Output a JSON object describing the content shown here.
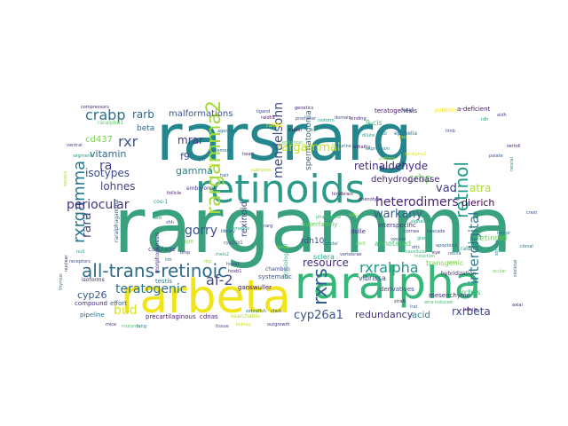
{
  "wordcloud": {
    "words": [
      {
        "text": "rargamma",
        "color": "#3aa17e"
      },
      {
        "text": "rarsrarg",
        "color": "#24878e"
      },
      {
        "text": "retinoids",
        "color": "#2b9a8a"
      },
      {
        "text": "rarbeta",
        "color": "#f2e41b"
      },
      {
        "text": "raralpha",
        "color": "#35b779"
      },
      {
        "text": "all-trans-retinoic",
        "color": "#2f6c8e"
      },
      {
        "text": "rargamma2",
        "color": "#a2da37"
      },
      {
        "text": "rxrgamma",
        "color": "#2a788e"
      },
      {
        "text": "rxrs",
        "color": "#355f8d"
      },
      {
        "text": "retinol",
        "color": "#1f9a8a"
      },
      {
        "text": "crabp",
        "color": "#2c728e"
      },
      {
        "text": "rxr",
        "color": "#3b528b"
      },
      {
        "text": "vitamin",
        "color": "#31688e"
      },
      {
        "text": "isotypes",
        "color": "#3e4a89"
      },
      {
        "text": "lohnes",
        "color": "#414487"
      },
      {
        "text": "periocular",
        "color": "#46327e"
      },
      {
        "text": "rara",
        "color": "#3e4c8a"
      },
      {
        "text": "teratogenic",
        "color": "#2c718e"
      },
      {
        "text": "bud",
        "color": "#d8e219"
      },
      {
        "text": "cyp26",
        "color": "#365c8d"
      },
      {
        "text": "af-2",
        "color": "#404688"
      },
      {
        "text": "gorry",
        "color": "#3b518b"
      },
      {
        "text": "rxralpha",
        "color": "#1f988b"
      },
      {
        "text": "cyp26a1",
        "color": "#39568c"
      },
      {
        "text": "redundancy",
        "color": "#46327e"
      },
      {
        "text": "rxrbeta",
        "color": "#3f4788"
      },
      {
        "text": "resource",
        "color": "#472d7b"
      },
      {
        "text": "heterodimers",
        "color": "#482475"
      },
      {
        "text": "retinaldehyde",
        "color": "#472a7a"
      },
      {
        "text": "mendelsohn",
        "color": "#3d4d8a"
      },
      {
        "text": "rargammal",
        "color": "#c0df25"
      },
      {
        "text": "warkany",
        "color": "#33638d"
      },
      {
        "text": "crbp",
        "color": "#6ccd5a"
      },
      {
        "text": "atra",
        "color": "#addc30"
      },
      {
        "text": "vad",
        "color": "#433e85"
      },
      {
        "text": "dehydrogenase",
        "color": "#482878"
      },
      {
        "text": "interdigital",
        "color": "#2a788e"
      },
      {
        "text": "mrar",
        "color": "#443a83"
      },
      {
        "text": "rarb",
        "color": "#32648e"
      },
      {
        "text": "malformations",
        "color": "#39568c"
      },
      {
        "text": "beta",
        "color": "#31688e"
      },
      {
        "text": "gamma",
        "color": "#26828e"
      },
      {
        "text": "ra",
        "color": "#414487"
      },
      {
        "text": "f9",
        "color": "#3b528b"
      },
      {
        "text": "cd437",
        "color": "#7ad151"
      },
      {
        "text": "rexinoid",
        "color": "#3f4889"
      },
      {
        "text": "rdh10",
        "color": "#3e4989"
      },
      {
        "text": "spermatogonia",
        "color": "#2e6e8e"
      },
      {
        "text": "retinoid",
        "color": "#6ccd5a"
      },
      {
        "text": "acid",
        "color": "#287d8e"
      },
      {
        "text": "dierich",
        "color": "#440154"
      },
      {
        "text": "teratogenesis",
        "color": "#48186a"
      },
      {
        "text": "raralphagamma",
        "color": "#34618d"
      },
      {
        "text": "morphogenesis",
        "color": "#46307e"
      },
      {
        "text": "fetal",
        "color": "#3a538b"
      },
      {
        "text": "publicity",
        "color": "#f1e51d"
      },
      {
        "text": "a-deficient",
        "color": "#481b6d"
      },
      {
        "text": "transgenic",
        "color": "#7ad151"
      },
      {
        "text": "annotated",
        "color": "#4ac16d"
      },
      {
        "text": "derivatives",
        "color": "#3e4c8a"
      },
      {
        "text": "mesenchyme",
        "color": "#472c7a"
      },
      {
        "text": "hybridization",
        "color": "#482374"
      },
      {
        "text": "arches",
        "color": "#35b779"
      },
      {
        "text": "sclera",
        "color": "#22a884"
      },
      {
        "text": "vibrissa",
        "color": "#3b528b"
      },
      {
        "text": "embryonal",
        "color": "#433e85"
      },
      {
        "text": "ganswuller",
        "color": "#471063"
      },
      {
        "text": "cartilage",
        "color": "#3e4a89"
      },
      {
        "text": "chambon",
        "color": "#3f4889"
      },
      {
        "text": "pipeline",
        "color": "#2d708e"
      },
      {
        "text": "compound",
        "color": "#472d7b"
      },
      {
        "text": "precartilaginous",
        "color": "#481a6c"
      },
      {
        "text": "cdnas",
        "color": "#481f70"
      },
      {
        "text": "searchable",
        "color": "#b5de2b"
      },
      {
        "text": "isoforms",
        "color": "#482071"
      },
      {
        "text": "testis",
        "color": "#287c8e"
      },
      {
        "text": "systematic",
        "color": "#3a548c"
      },
      {
        "text": "interspecific",
        "color": "#46337f"
      },
      {
        "text": "superfamily",
        "color": "#5ec962"
      },
      {
        "text": "dolle",
        "color": "#472f7d"
      },
      {
        "text": "effort",
        "color": "#365d8d"
      },
      {
        "text": "raldh2",
        "color": "#fde725"
      },
      {
        "text": "raldh1",
        "color": "#471365"
      },
      {
        "text": "situ",
        "color": "#84d44b"
      },
      {
        "text": "lihb",
        "color": "#26828e"
      },
      {
        "text": "raldh3",
        "color": "#21918c"
      },
      {
        "text": "agenesis",
        "color": "#2c728e"
      },
      {
        "text": "raralpha1",
        "color": "#5ec962"
      },
      {
        "text": "homeotic",
        "color": "#20a486"
      },
      {
        "text": "library",
        "color": "#38598c"
      },
      {
        "text": "ligand",
        "color": "#3b528b"
      },
      {
        "text": "9-cis",
        "color": "#3dbc74"
      },
      {
        "text": "rarg",
        "color": "#46337e"
      },
      {
        "text": "cos-1",
        "color": "#1e9b8a"
      },
      {
        "text": "epithelia",
        "color": "#2c738e"
      },
      {
        "text": "atra-induced",
        "color": "#3fbc73"
      },
      {
        "text": "physiological",
        "color": "#2ab07f"
      },
      {
        "text": "subtypes",
        "color": "#bddf26"
      },
      {
        "text": "genetics",
        "color": "#482173"
      },
      {
        "text": "larval",
        "color": "#8fd744"
      },
      {
        "text": "fusion",
        "color": "#440154"
      },
      {
        "text": "raralpha2",
        "color": "#e5e419"
      },
      {
        "text": "dilute",
        "color": "#1fa088"
      },
      {
        "text": "hox",
        "color": "#cae11f"
      },
      {
        "text": "intracellular",
        "color": "#35b779"
      },
      {
        "text": "limb",
        "color": "#3e4989"
      },
      {
        "text": "skeletal",
        "color": "#2a778e"
      },
      {
        "text": "palate",
        "color": "#38588c"
      },
      {
        "text": "sertoli",
        "color": "#48196b"
      },
      {
        "text": "neural",
        "color": "#1f958b"
      },
      {
        "text": "crest",
        "color": "#3b518b"
      },
      {
        "text": "clonal",
        "color": "#2e6f8e"
      },
      {
        "text": "axial",
        "color": "#482576"
      },
      {
        "text": "somite",
        "color": "#25848e"
      },
      {
        "text": "ocular",
        "color": "#6ece58"
      },
      {
        "text": "tumor",
        "color": "#2d718e"
      },
      {
        "text": "compressors",
        "color": "#472a7a"
      },
      {
        "text": "ventral",
        "color": "#433e85"
      },
      {
        "text": "segment",
        "color": "#1fa187"
      },
      {
        "text": "keratin",
        "color": "#9fda3a"
      },
      {
        "text": "receptors",
        "color": "#3c4f8a"
      },
      {
        "text": "thymus",
        "color": "#2b758e"
      },
      {
        "text": "nuclear",
        "color": "#482677"
      },
      {
        "text": "null",
        "color": "#20928c"
      },
      {
        "text": "mice",
        "color": "#46307e"
      },
      {
        "text": "mutants",
        "color": "#4ec36b"
      },
      {
        "text": "lung",
        "color": "#2c728e"
      },
      {
        "text": "tissue",
        "color": "#3f4889"
      },
      {
        "text": "kidney",
        "color": "#d5e21a"
      },
      {
        "text": "zebrafish",
        "color": "#2a788e"
      },
      {
        "text": "outgrowth",
        "color": "#46327e"
      },
      {
        "text": "chick",
        "color": "#39568c"
      },
      {
        "text": "pharyngeal",
        "color": "#3aba76"
      },
      {
        "text": "hindbrain",
        "color": "#471164"
      },
      {
        "text": "caudal",
        "color": "#26828e"
      },
      {
        "text": "vertebrae",
        "color": "#3e4a89"
      },
      {
        "text": "cleft",
        "color": "#7fd34e"
      },
      {
        "text": "phenotype",
        "color": "#482878"
      },
      {
        "text": "vesicle",
        "color": "#34618d"
      },
      {
        "text": "glands",
        "color": "#22a785"
      },
      {
        "text": "otic",
        "color": "#3b528b"
      },
      {
        "text": "eye",
        "color": "#481769"
      },
      {
        "text": "retina",
        "color": "#2d708e"
      },
      {
        "text": "lens",
        "color": "#8bd646"
      },
      {
        "text": "cornea",
        "color": "#433d84"
      },
      {
        "text": "murine",
        "color": "#2f6b8e"
      },
      {
        "text": "tubule",
        "color": "#481c6e"
      },
      {
        "text": "signaling",
        "color": "#20a386"
      },
      {
        "text": "cascade",
        "color": "#3d4e8a"
      },
      {
        "text": "induction",
        "color": "#4ac16d"
      },
      {
        "text": "apoptosis",
        "color": "#31668e"
      },
      {
        "text": "lethality",
        "color": "#48186a"
      },
      {
        "text": "expression",
        "color": "#287c8e"
      },
      {
        "text": "pattern",
        "color": "#a5db36"
      },
      {
        "text": "domain",
        "color": "#3a548c"
      },
      {
        "text": "binding",
        "color": "#482475"
      },
      {
        "text": "isoform",
        "color": "#1f9e89"
      },
      {
        "text": "promoter",
        "color": "#3c4f8a"
      },
      {
        "text": "enhancer",
        "color": "#65cb5e"
      },
      {
        "text": "element",
        "color": "#2a768e"
      },
      {
        "text": "heart",
        "color": "#472e7c"
      },
      {
        "text": "gut",
        "color": "#34608d"
      },
      {
        "text": "skin",
        "color": "#c8e020"
      },
      {
        "text": "hair",
        "color": "#39558c"
      },
      {
        "text": "follicle",
        "color": "#481467"
      },
      {
        "text": "wnt",
        "color": "#23898e"
      },
      {
        "text": "shh",
        "color": "#3f4889"
      },
      {
        "text": "fgf8",
        "color": "#7cd250"
      },
      {
        "text": "bmp",
        "color": "#46337f"
      },
      {
        "text": "lim",
        "color": "#2c728e"
      },
      {
        "text": "meis2",
        "color": "#24aa83"
      },
      {
        "text": "hoxa1",
        "color": "#3e4989"
      },
      {
        "text": "hoxb1",
        "color": "#481f70"
      },
      {
        "text": "cyp26b1",
        "color": "#3b528b"
      },
      {
        "text": "rbp",
        "color": "#9bd93c"
      },
      {
        "text": "stra6",
        "color": "#472c7a"
      },
      {
        "text": "lrat",
        "color": "#2e6e8e"
      },
      {
        "text": "rdh",
        "color": "#1f968b"
      },
      {
        "text": "aldh",
        "color": "#433e85"
      }
    ]
  }
}
